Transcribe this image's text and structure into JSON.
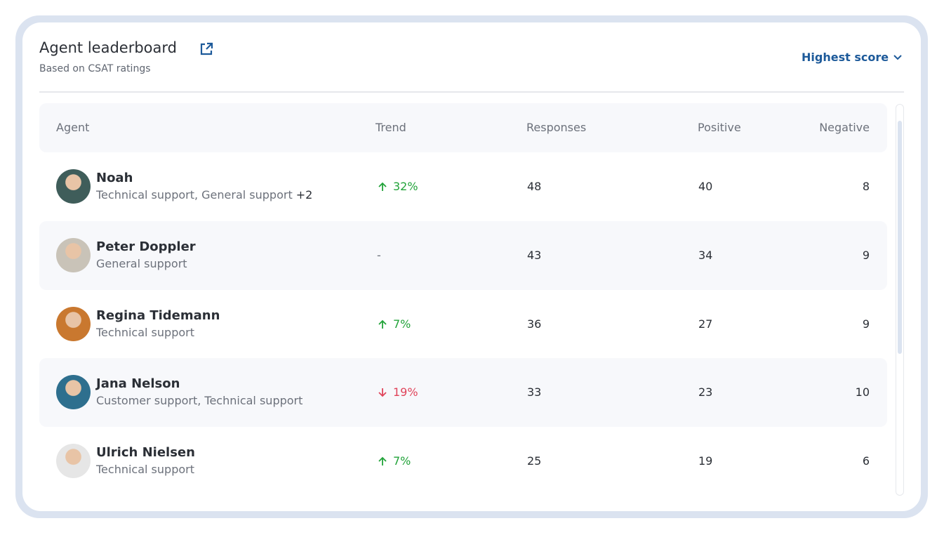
{
  "header": {
    "title": "Agent leaderboard",
    "subtitle": "Based on CSAT ratings",
    "sort": "Highest score"
  },
  "table": {
    "columns": [
      "Agent",
      "Trend",
      "Responses",
      "Positive",
      "Negative"
    ],
    "rows": [
      {
        "name": "Noah",
        "teams": "Technical support, General support",
        "extra": "+2",
        "trend": "32%",
        "trend_direction": "up",
        "responses": 48,
        "positive": 40,
        "negative": 8
      },
      {
        "name": "Peter Doppler",
        "teams": "General support",
        "trend": "-",
        "responses": 43,
        "positive": 34,
        "negative": 9
      },
      {
        "name": "Regina Tidemann",
        "teams": "Technical support",
        "trend": "7%",
        "trend_direction": "up",
        "responses": 36,
        "positive": 27,
        "negative": 9
      },
      {
        "name": "Jana Nelson",
        "teams": "Customer support, Technical support",
        "trend": "19%",
        "trend_direction": "down",
        "responses": 33,
        "positive": 23,
        "negative": 10
      },
      {
        "name": "Ulrich Nielsen",
        "teams": "Technical support",
        "trend": "7%",
        "trend_direction": "up",
        "responses": 25,
        "positive": 19,
        "negative": 6
      }
    ]
  }
}
